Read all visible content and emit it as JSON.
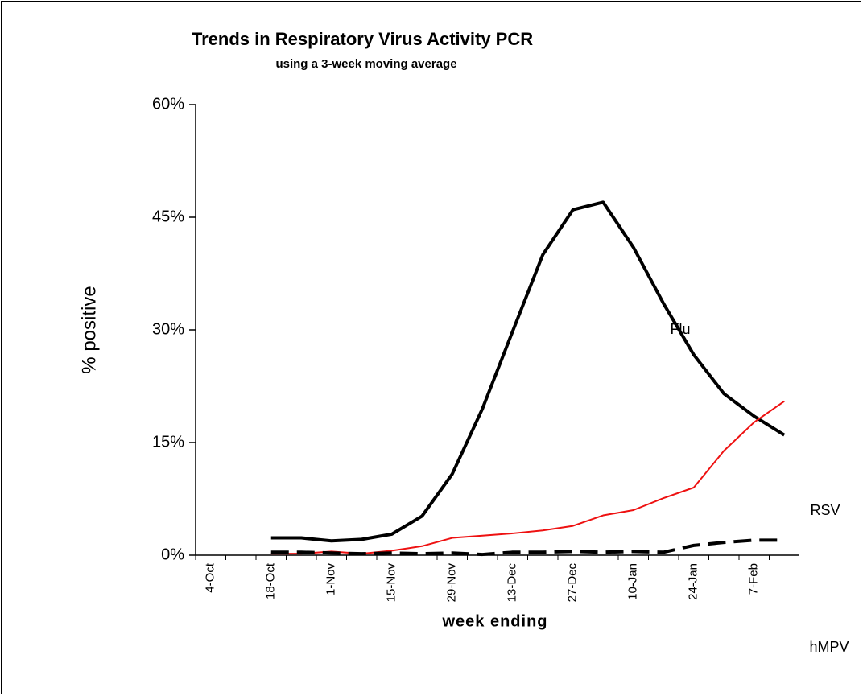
{
  "chart_data": {
    "type": "line",
    "title": "Trends in Respiratory Virus Activity PCR",
    "subtitle": "using a 3-week moving average",
    "y_label": "% positive",
    "x_label": "week ending",
    "categories": [
      "4-Oct",
      null,
      "18-Oct",
      null,
      "1-Nov",
      null,
      "15-Nov",
      null,
      "29-Nov",
      null,
      "13-Dec",
      null,
      "27-Dec",
      null,
      "10-Jan",
      null,
      "24-Jan",
      null,
      "7-Feb",
      null
    ],
    "series": [
      {
        "name": "Flu",
        "color": "#000000",
        "style": "solid",
        "width": 4,
        "values": [
          null,
          null,
          2.3,
          2.3,
          1.9,
          2.1,
          2.8,
          5.2,
          10.8,
          19.5,
          29.8,
          40,
          46,
          47,
          41,
          33.5,
          26.7,
          21.5,
          18.5,
          16
        ]
      },
      {
        "name": "RSV",
        "color": "#ee1111",
        "style": "solid",
        "width": 2,
        "values": [
          null,
          null,
          0.2,
          0.2,
          0.5,
          0.2,
          0.6,
          1.2,
          2.3,
          2.6,
          2.9,
          3.3,
          3.9,
          5.3,
          6,
          7.6,
          9,
          13.9,
          17.7,
          20.5
        ]
      },
      {
        "name": "hMPV",
        "color": "#000000",
        "style": "dashed",
        "width": 4,
        "values": [
          null,
          null,
          0.4,
          0.4,
          0.3,
          0.2,
          0.3,
          0.2,
          0.3,
          0.1,
          0.4,
          0.4,
          0.5,
          0.4,
          0.5,
          0.4,
          1.3,
          1.7,
          2,
          2
        ]
      }
    ],
    "ylim": [
      0,
      60
    ],
    "yticks": [
      {
        "value": 0,
        "label": "0%"
      },
      {
        "value": 15,
        "label": "15%"
      },
      {
        "value": 30,
        "label": "30%"
      },
      {
        "value": 45,
        "label": "45%"
      },
      {
        "value": 60,
        "label": "60%"
      }
    ]
  }
}
